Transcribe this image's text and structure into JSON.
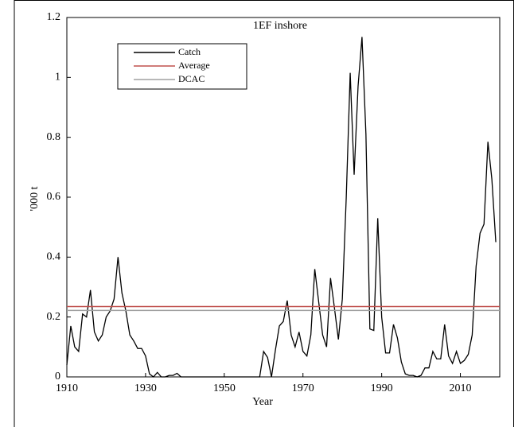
{
  "chart_data": {
    "type": "line",
    "title": "1EF inshore",
    "x_label": "Year",
    "y_label": "'000 t",
    "xlim": [
      1910,
      2020
    ],
    "xticks": [
      1910,
      1930,
      1950,
      1970,
      1990,
      2010
    ],
    "ylim": [
      0,
      1.2
    ],
    "yticks": [
      0,
      0.2,
      0.4,
      0.6,
      0.8,
      1,
      1.2
    ],
    "legend": "upper left",
    "series": [
      {
        "name": "Catch",
        "color": "#000000",
        "x": [
          1910,
          1911,
          1912,
          1913,
          1914,
          1915,
          1916,
          1917,
          1918,
          1919,
          1920,
          1921,
          1922,
          1923,
          1924,
          1925,
          1926,
          1927,
          1928,
          1929,
          1930,
          1931,
          1932,
          1933,
          1934,
          1935,
          1936,
          1937,
          1938,
          1939,
          1940,
          1941,
          1942,
          1943,
          1944,
          1945,
          1946,
          1947,
          1948,
          1949,
          1950,
          1951,
          1952,
          1953,
          1954,
          1955,
          1956,
          1957,
          1958,
          1959,
          1960,
          1961,
          1962,
          1963,
          1964,
          1965,
          1966,
          1967,
          1968,
          1969,
          1970,
          1971,
          1972,
          1973,
          1974,
          1975,
          1976,
          1977,
          1978,
          1979,
          1980,
          1981,
          1982,
          1983,
          1984,
          1985,
          1986,
          1987,
          1988,
          1989,
          1990,
          1991,
          1992,
          1993,
          1994,
          1995,
          1996,
          1997,
          1998,
          1999,
          2000,
          2001,
          2002,
          2003,
          2004,
          2005,
          2006,
          2007,
          2008,
          2009,
          2010,
          2011,
          2012,
          2013,
          2014,
          2015,
          2016,
          2017,
          2018,
          2019
        ],
        "values": [
          0.04,
          0.17,
          0.1,
          0.085,
          0.21,
          0.2,
          0.29,
          0.15,
          0.12,
          0.14,
          0.2,
          0.22,
          0.26,
          0.4,
          0.28,
          0.22,
          0.14,
          0.12,
          0.095,
          0.095,
          0.07,
          0.01,
          0,
          0.015,
          0,
          0,
          0.005,
          0.005,
          0.012,
          0,
          0,
          0,
          0,
          0,
          0,
          0,
          0,
          0,
          0,
          0,
          0,
          0,
          0,
          0,
          0,
          0,
          0,
          0,
          0,
          0,
          0.085,
          0.065,
          0,
          0.09,
          0.17,
          0.185,
          0.255,
          0.14,
          0.1,
          0.15,
          0.085,
          0.07,
          0.14,
          0.36,
          0.25,
          0.14,
          0.1,
          0.33,
          0.23,
          0.125,
          0.26,
          0.6,
          1.015,
          0.675,
          0.97,
          1.135,
          0.81,
          0.16,
          0.155,
          0.53,
          0.2,
          0.08,
          0.08,
          0.175,
          0.13,
          0.05,
          0.01,
          0.005,
          0.005,
          0,
          0.005,
          0.03,
          0.03,
          0.085,
          0.06,
          0.06,
          0.175,
          0.07,
          0.045,
          0.085,
          0.045,
          0.055,
          0.075,
          0.14,
          0.37,
          0.48,
          0.51,
          0.785,
          0.66,
          0.45
        ]
      },
      {
        "name": "Average",
        "color": "#c0504d",
        "x": [
          1910,
          2020
        ],
        "values": [
          0.235,
          0.235
        ]
      },
      {
        "name": "DCAC",
        "color": "#a0a0a0",
        "x": [
          1910,
          2020
        ],
        "values": [
          0.222,
          0.222
        ]
      }
    ]
  }
}
